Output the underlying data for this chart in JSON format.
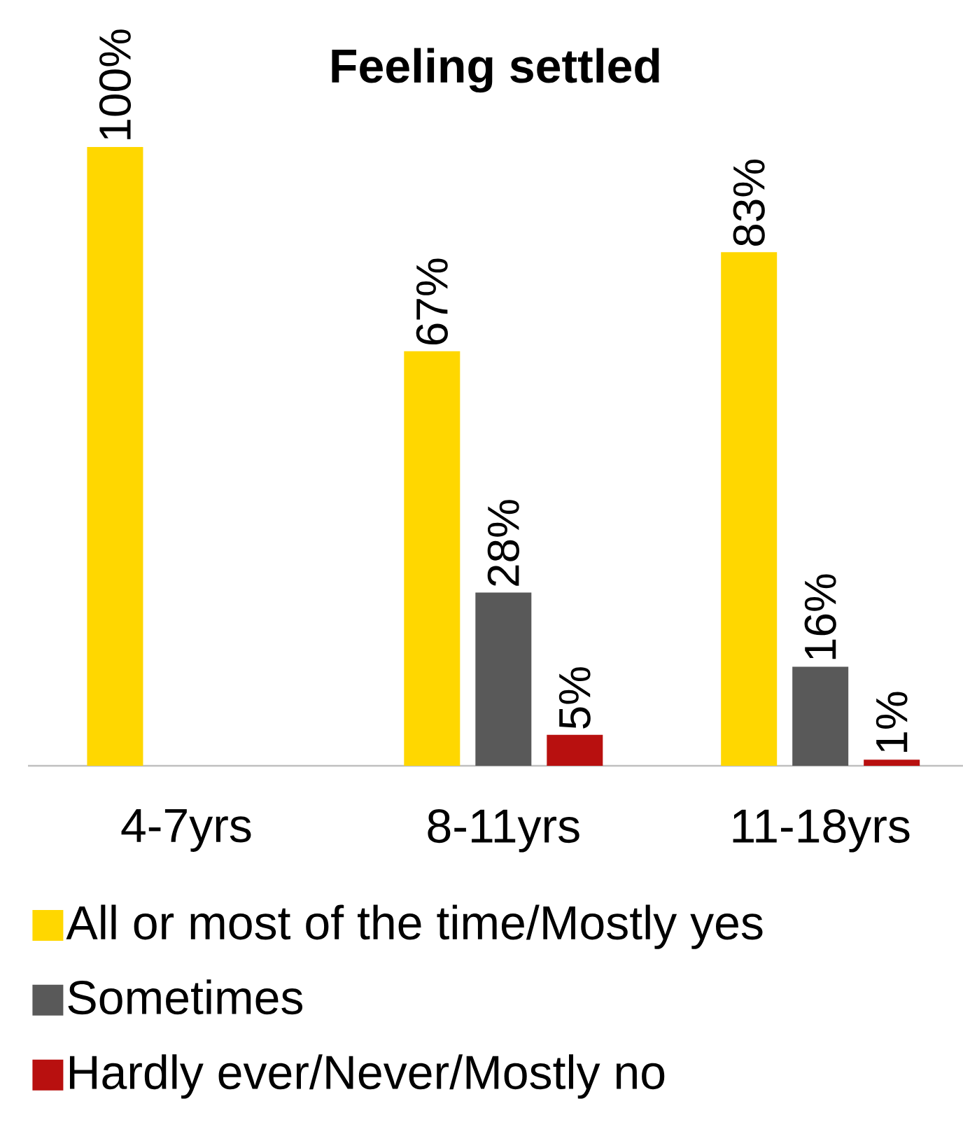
{
  "chart_data": {
    "type": "bar",
    "title": "Feeling settled",
    "categories": [
      "4-7yrs",
      "8-11yrs",
      "11-18yrs"
    ],
    "series": [
      {
        "name": "All or most of the time/Mostly yes",
        "color": "#ffd700",
        "values": [
          100,
          67,
          83
        ],
        "value_labels": [
          "100%",
          "67%",
          "83%"
        ]
      },
      {
        "name": "Sometimes",
        "color": "#595959",
        "values": [
          null,
          28,
          16
        ],
        "value_labels": [
          null,
          "28%",
          "16%"
        ]
      },
      {
        "name": "Hardly ever/Never/Mostly no",
        "color": "#b8100f",
        "values": [
          null,
          5,
          1
        ],
        "value_labels": [
          null,
          "5%",
          "1%"
        ]
      }
    ],
    "legend": "bottom"
  }
}
